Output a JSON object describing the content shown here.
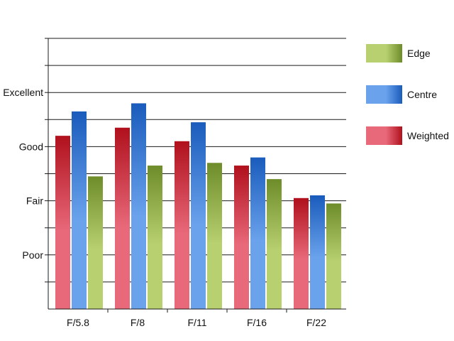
{
  "chart_data": {
    "type": "bar",
    "categories": [
      "F/5.8",
      "F/8",
      "F/11",
      "F/16",
      "F/22"
    ],
    "y_tick_labels": [
      "Poor",
      "Fair",
      "Good",
      "Excellent"
    ],
    "y_tick_values": [
      1,
      2,
      3,
      4
    ],
    "ylim": [
      0,
      5
    ],
    "grid": true,
    "legend_position": "right",
    "legend_order": [
      "Edge",
      "Centre",
      "Weighted"
    ],
    "series": [
      {
        "name": "Weighted",
        "values": [
          3.2,
          3.35,
          3.1,
          2.65,
          2.05
        ]
      },
      {
        "name": "Centre",
        "values": [
          3.65,
          3.8,
          3.45,
          2.8,
          2.1
        ]
      },
      {
        "name": "Edge",
        "values": [
          2.45,
          2.65,
          2.7,
          2.4,
          1.95
        ]
      }
    ],
    "colors": {
      "Weighted": {
        "light": "#e8697a",
        "dark": "#b0101c"
      },
      "Centre": {
        "light": "#6aa2ec",
        "dark": "#1a5cbc"
      },
      "Edge": {
        "light": "#b8d070",
        "dark": "#6e8c2a"
      }
    }
  }
}
